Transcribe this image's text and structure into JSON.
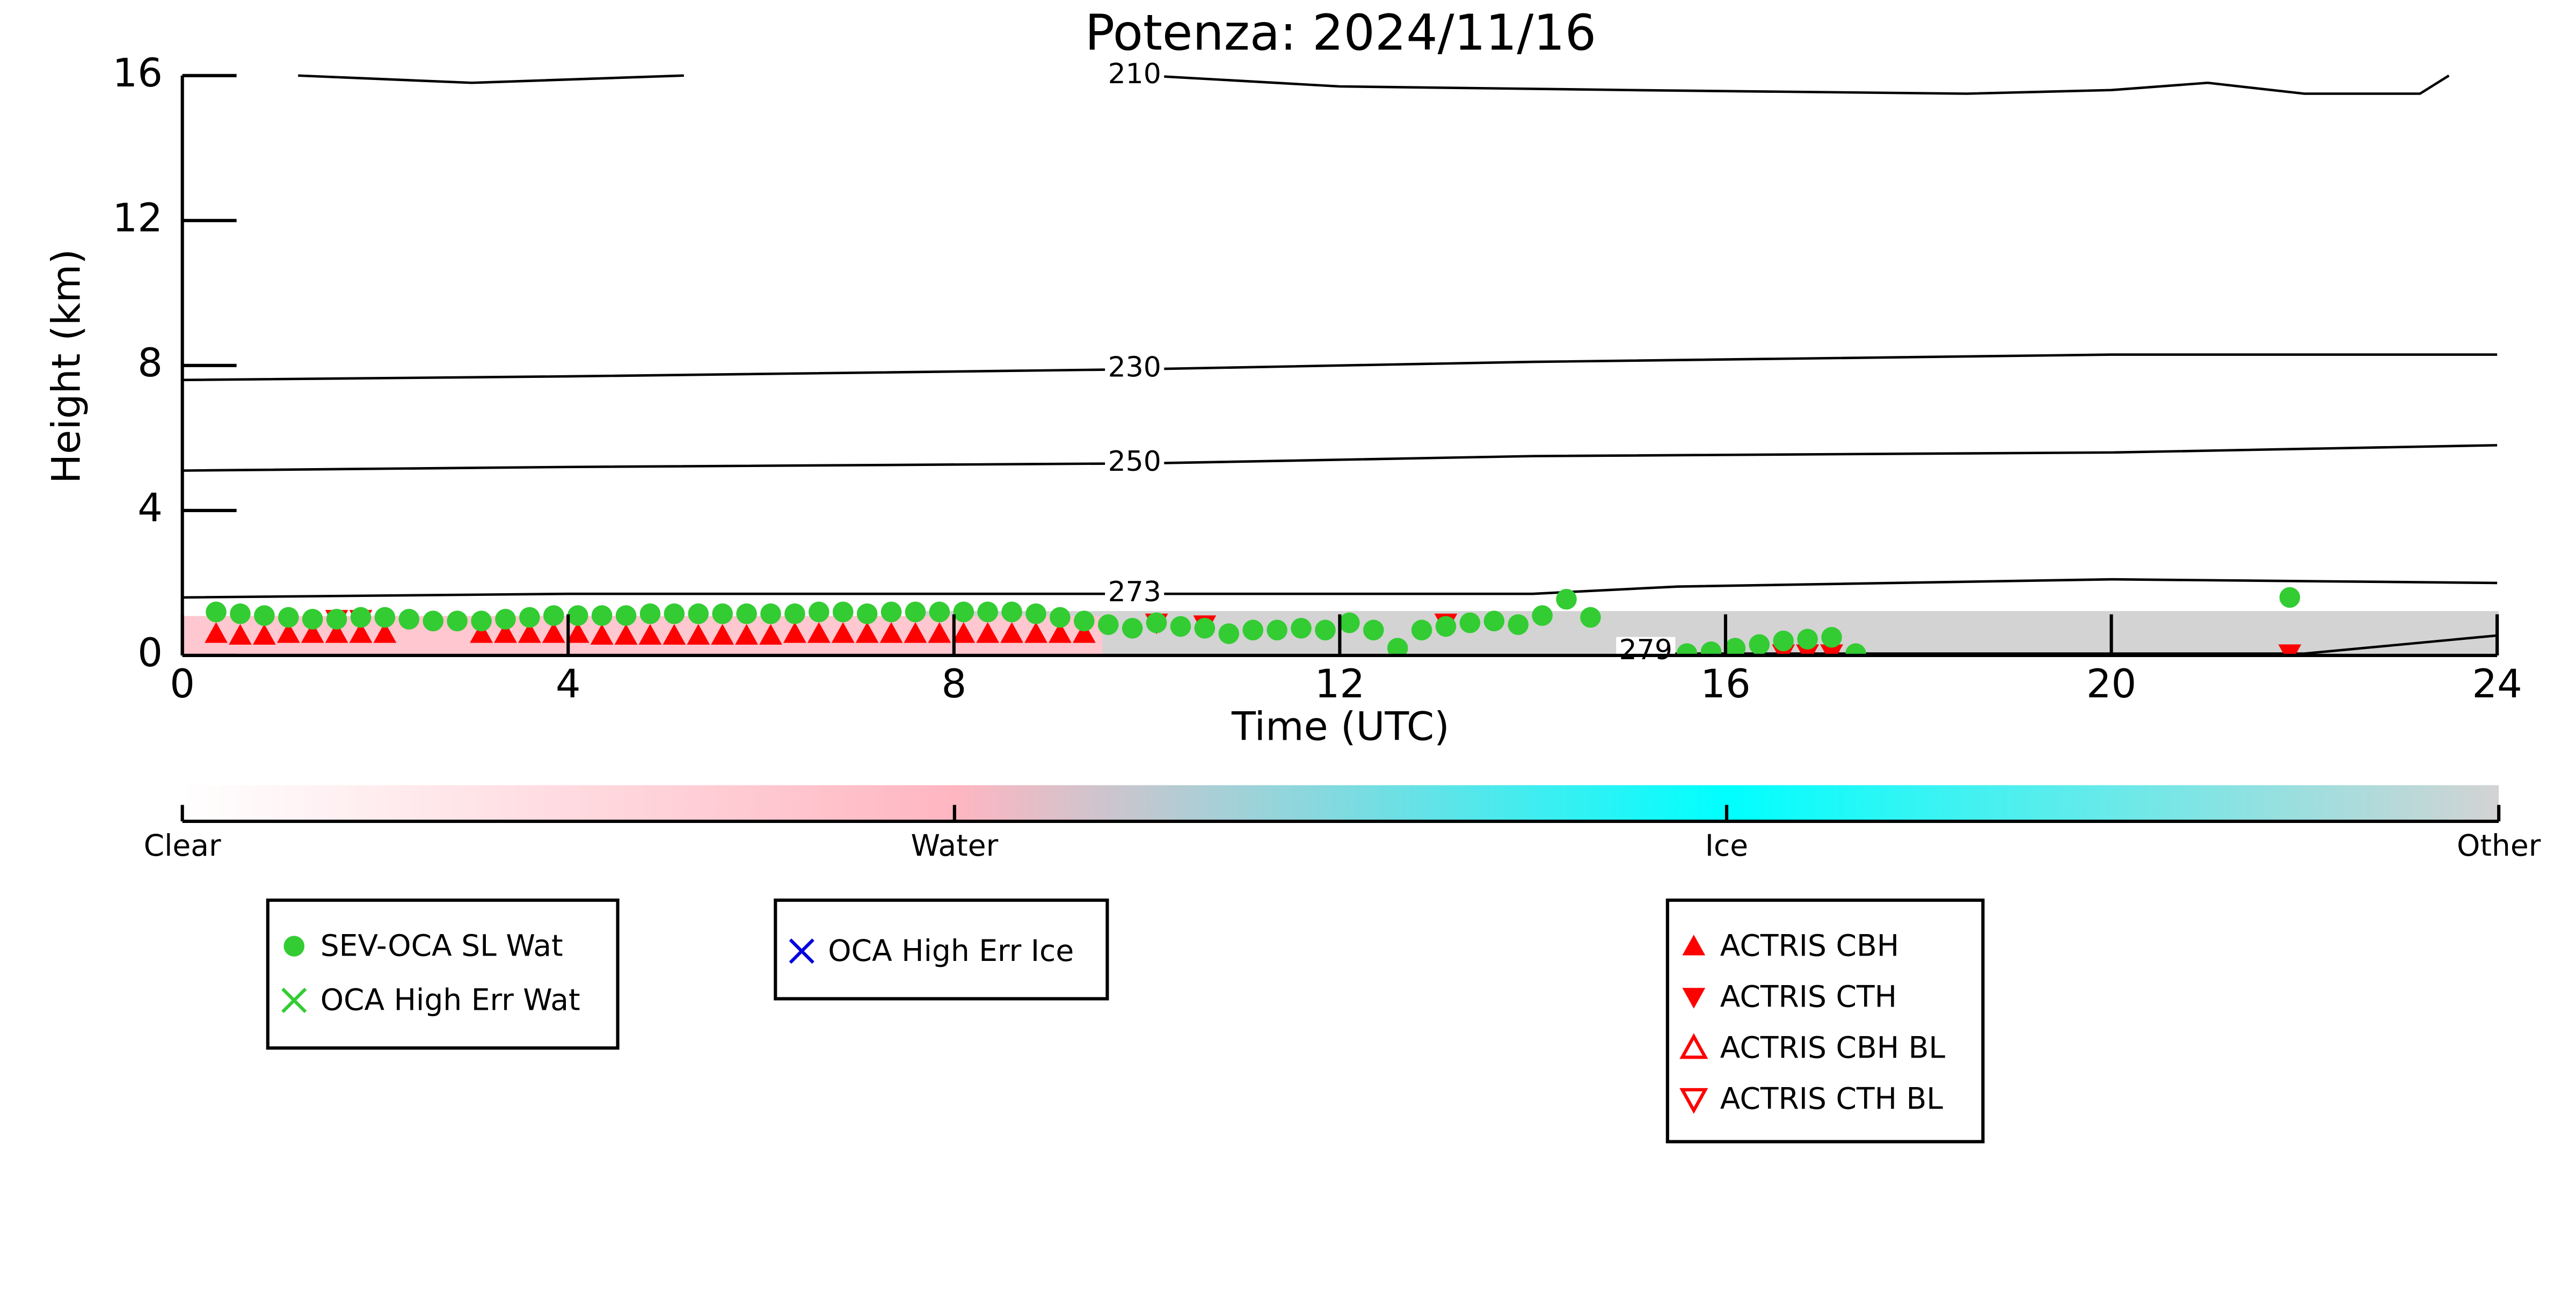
{
  "chart_data": {
    "type": "scatter",
    "title": "Potenza: 2024/11/16",
    "xlabel": "Time (UTC)",
    "ylabel": "Height (km)",
    "xlim": [
      0,
      24
    ],
    "xticks": [
      0,
      4,
      8,
      12,
      16,
      20,
      24
    ],
    "ylim": [
      0,
      16
    ],
    "yticks": [
      0,
      4,
      8,
      12,
      16
    ],
    "series": [
      {
        "name": "SEV-OCA SL Wat",
        "color": "#33cc33",
        "marker": "circle",
        "x": [
          0.35,
          0.6,
          0.85,
          1.1,
          1.35,
          1.6,
          1.85,
          2.1,
          2.35,
          2.6,
          2.85,
          3.1,
          3.35,
          3.6,
          3.85,
          4.1,
          4.35,
          4.6,
          4.85,
          5.1,
          5.35,
          5.6,
          5.85,
          6.1,
          6.35,
          6.6,
          6.85,
          7.1,
          7.35,
          7.6,
          7.85,
          8.1,
          8.35,
          8.6,
          8.85,
          9.1,
          9.35,
          9.6,
          9.85,
          10.1,
          10.35,
          10.6,
          10.85,
          11.1,
          11.35,
          11.6,
          11.85,
          12.1,
          12.35,
          12.6,
          12.85,
          13.1,
          13.35,
          13.6,
          13.85,
          14.1,
          14.35,
          14.6,
          15.1,
          15.35,
          15.6,
          15.85,
          16.1,
          16.35,
          16.6,
          16.85,
          17.1,
          17.35,
          21.85
        ],
        "values": [
          1.2,
          1.15,
          1.1,
          1.05,
          1.0,
          1.0,
          1.05,
          1.05,
          1.0,
          0.95,
          0.95,
          0.95,
          1.0,
          1.05,
          1.1,
          1.1,
          1.1,
          1.1,
          1.15,
          1.15,
          1.15,
          1.15,
          1.15,
          1.15,
          1.15,
          1.2,
          1.2,
          1.15,
          1.2,
          1.2,
          1.2,
          1.2,
          1.2,
          1.2,
          1.15,
          1.05,
          0.95,
          0.85,
          0.75,
          0.9,
          0.8,
          0.75,
          0.6,
          0.7,
          0.7,
          0.75,
          0.7,
          0.9,
          0.7,
          0.2,
          0.7,
          0.8,
          0.9,
          0.95,
          0.85,
          1.1,
          1.55,
          1.05,
          0.1,
          0.1,
          0.05,
          0.1,
          0.2,
          0.3,
          0.4,
          0.45,
          0.5,
          0.05,
          1.6
        ]
      },
      {
        "name": "OCA High Err Wat",
        "color": "#33cc33",
        "marker": "x",
        "x": [],
        "values": []
      },
      {
        "name": "OCA High Err Ice",
        "color": "#0000dd",
        "marker": "x",
        "x": [],
        "values": []
      },
      {
        "name": "ACTRIS CBH",
        "color": "#ff0000",
        "marker": "tri-up",
        "x": [
          0.35,
          0.6,
          0.85,
          1.1,
          1.35,
          1.6,
          1.85,
          2.1,
          3.1,
          3.35,
          3.6,
          3.85,
          4.1,
          4.35,
          4.6,
          4.85,
          5.1,
          5.35,
          5.6,
          5.85,
          6.1,
          6.35,
          6.6,
          6.85,
          7.1,
          7.35,
          7.6,
          7.85,
          8.1,
          8.35,
          8.6,
          8.85,
          9.1,
          9.35
        ],
        "values": [
          0.6,
          0.55,
          0.55,
          0.6,
          0.6,
          0.6,
          0.6,
          0.6,
          0.6,
          0.6,
          0.6,
          0.6,
          0.6,
          0.55,
          0.55,
          0.55,
          0.55,
          0.55,
          0.55,
          0.55,
          0.55,
          0.6,
          0.6,
          0.6,
          0.6,
          0.6,
          0.6,
          0.6,
          0.6,
          0.6,
          0.6,
          0.6,
          0.6,
          0.6
        ]
      },
      {
        "name": "ACTRIS CTH",
        "color": "#ff0000",
        "marker": "tri-down",
        "x": [
          1.6,
          1.85,
          10.1,
          10.6,
          13.1,
          16.6,
          16.85,
          17.1,
          21.85
        ],
        "values": [
          1.0,
          1.0,
          0.9,
          0.85,
          0.9,
          0.05,
          0.05,
          0.05,
          0.05
        ]
      },
      {
        "name": "ACTRIS CBH BL",
        "color": "#ff0000",
        "marker": "tri-up-open",
        "x": [],
        "values": []
      },
      {
        "name": "ACTRIS CTH BL",
        "color": "#ff0000",
        "marker": "tri-down-open",
        "x": [],
        "values": []
      }
    ],
    "contours": [
      {
        "name": "210",
        "x": [
          1.2,
          3,
          5.2,
          null,
          10,
          12,
          15,
          18.5,
          20,
          21,
          22,
          23.2,
          23.5
        ],
        "values": [
          16,
          15.8,
          16,
          null,
          16,
          15.7,
          15.6,
          15.5,
          15.6,
          15.8,
          15.5,
          15.5,
          16
        ],
        "label_x": 9.6,
        "label_y": 16
      },
      {
        "name": "230",
        "x": [
          0,
          4,
          10,
          14,
          20,
          24
        ],
        "values": [
          7.6,
          7.7,
          7.9,
          8.1,
          8.3,
          8.3
        ],
        "label_x": 9.6,
        "label_y": 7.9
      },
      {
        "name": "250",
        "x": [
          0,
          4,
          10,
          14,
          20,
          24
        ],
        "values": [
          5.1,
          5.2,
          5.3,
          5.5,
          5.6,
          5.8
        ],
        "label_x": 9.6,
        "label_y": 5.3
      },
      {
        "name": "273",
        "x": [
          0,
          4,
          10,
          14,
          15.5,
          20,
          24
        ],
        "values": [
          1.6,
          1.7,
          1.7,
          1.7,
          1.9,
          2.1,
          2.0
        ],
        "label_x": 9.6,
        "label_y": 1.7
      },
      {
        "name": "279",
        "x": [
          14.9,
          22,
          24
        ],
        "values": [
          0.05,
          0.05,
          0.55
        ],
        "label_x": 14.9,
        "label_y": 0.1
      }
    ],
    "colorbar": {
      "categories": [
        "Clear",
        "Water",
        "Ice",
        "Other"
      ],
      "colors": [
        "#ffffff",
        "#ffb6c1",
        "#00ffff",
        "#d3d3d3"
      ]
    }
  }
}
